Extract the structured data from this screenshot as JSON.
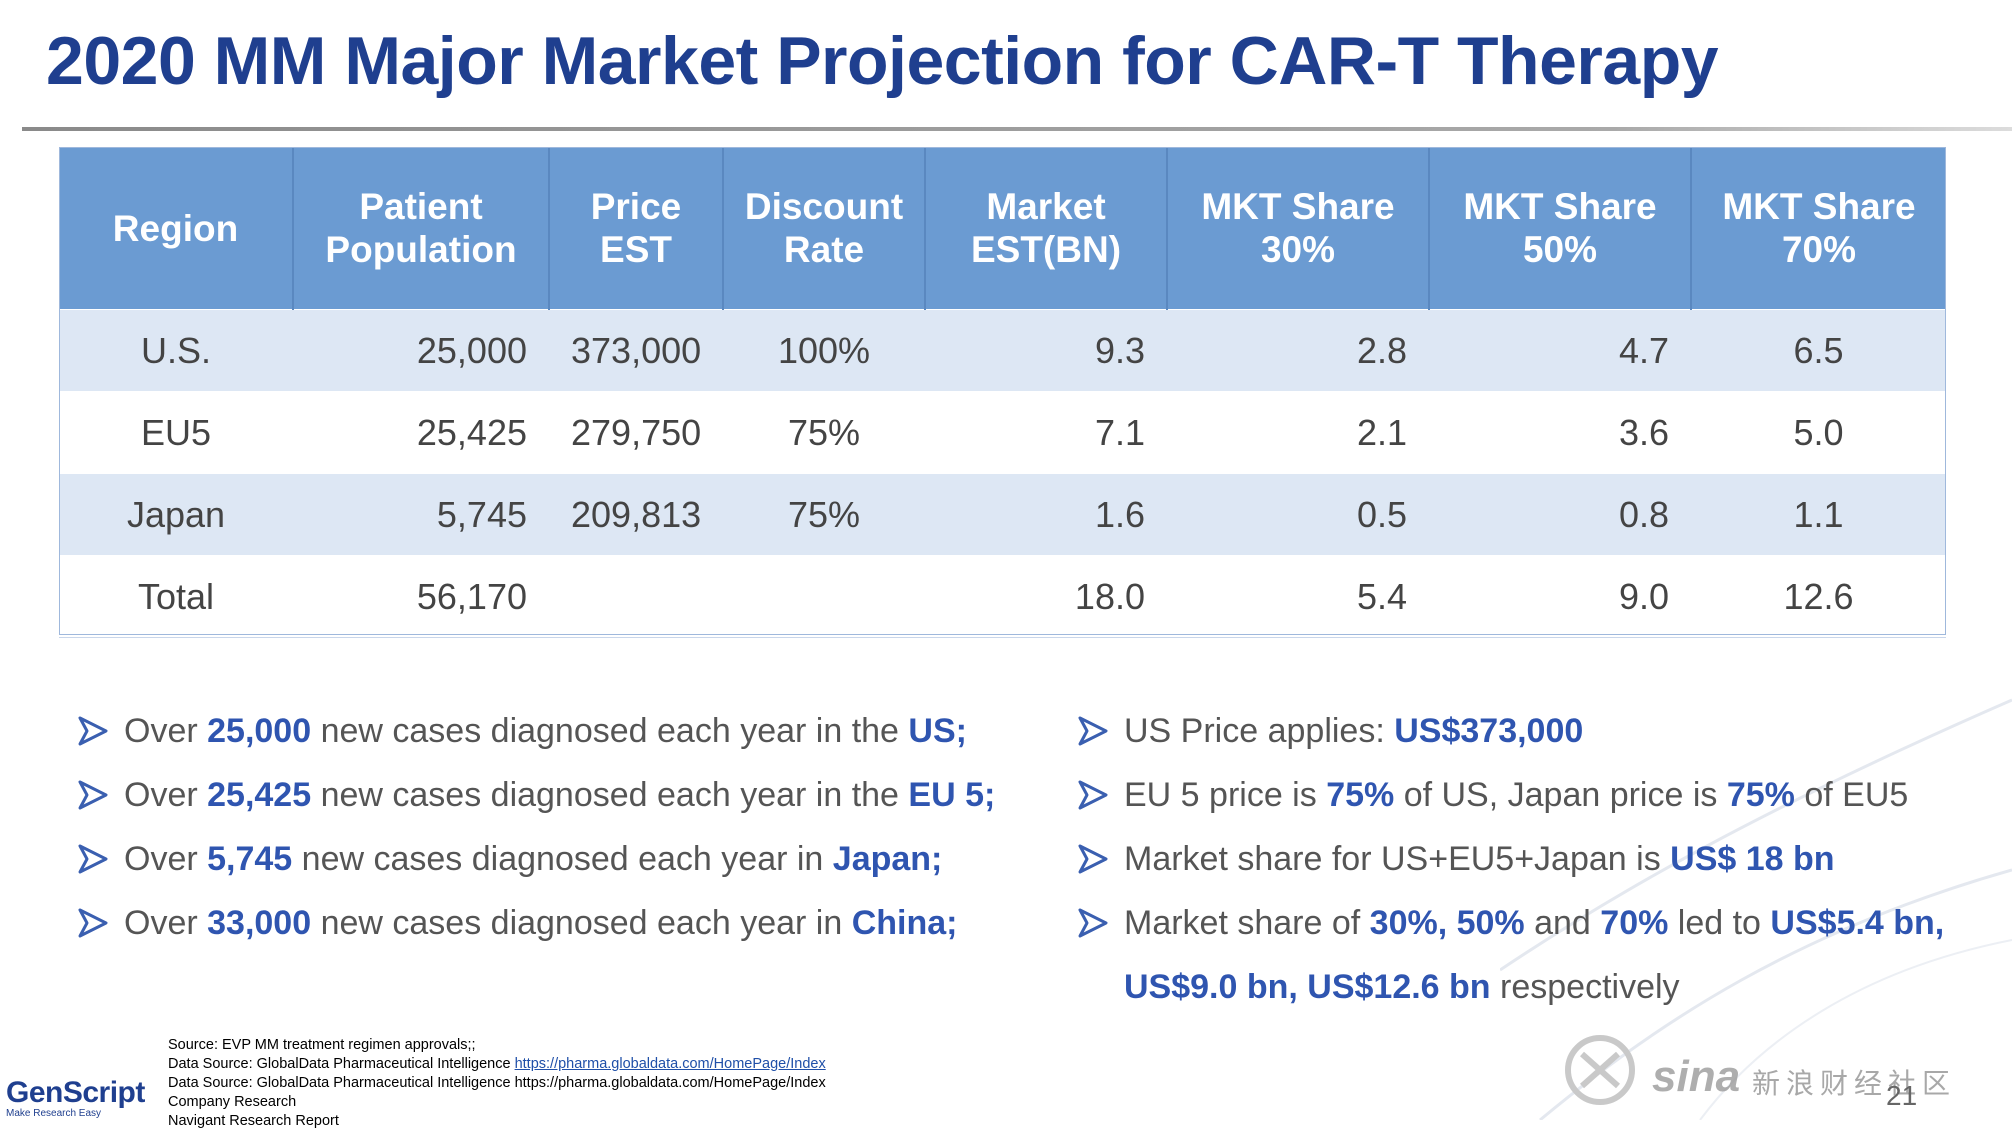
{
  "title": "2020 MM Major Market Projection for CAR-T Therapy",
  "table": {
    "headers": [
      [
        "Region",
        ""
      ],
      [
        "Patient",
        "Population"
      ],
      [
        "Price",
        "EST"
      ],
      [
        "Discount",
        "Rate"
      ],
      [
        "Market",
        "EST(BN)"
      ],
      [
        "MKT Share",
        "30%"
      ],
      [
        "MKT Share",
        "50%"
      ],
      [
        "MKT Share",
        "70%"
      ]
    ],
    "rows": [
      [
        "U.S.",
        "25,000",
        "373,000",
        "100%",
        "9.3",
        "2.8",
        "4.7",
        "6.5"
      ],
      [
        "EU5",
        "25,425",
        "279,750",
        "75%",
        "7.1",
        "2.1",
        "3.6",
        "5.0"
      ],
      [
        "Japan",
        "5,745",
        "209,813",
        "75%",
        "1.6",
        "0.5",
        "0.8",
        "1.1"
      ],
      [
        "Total",
        "56,170",
        "",
        "",
        "18.0",
        "5.4",
        "9.0",
        "12.6"
      ]
    ]
  },
  "left_bullets": [
    [
      {
        "t": "Over "
      },
      {
        "t": "25,000",
        "h": true
      },
      {
        "t": " new cases diagnosed each year in the "
      },
      {
        "t": "US;",
        "h": true
      }
    ],
    [
      {
        "t": "Over "
      },
      {
        "t": "25,425",
        "h": true
      },
      {
        "t": " new cases diagnosed each year in the "
      },
      {
        "t": "EU 5;",
        "h": true
      }
    ],
    [
      {
        "t": "Over "
      },
      {
        "t": "5,745",
        "h": true
      },
      {
        "t": " new cases diagnosed each year in "
      },
      {
        "t": "Japan;",
        "h": true
      }
    ],
    [
      {
        "t": "Over "
      },
      {
        "t": "33,000",
        "h": true
      },
      {
        "t": " new cases diagnosed each year in "
      },
      {
        "t": "China;",
        "h": true
      }
    ]
  ],
  "right_bullets": [
    [
      {
        "t": "US Price applies: "
      },
      {
        "t": "US$373,000",
        "h": true
      }
    ],
    [
      {
        "t": "EU 5 price is "
      },
      {
        "t": "75%",
        "h": true
      },
      {
        "t": " of US, Japan price is "
      },
      {
        "t": "75%",
        "h": true
      },
      {
        "t": " of EU5"
      }
    ],
    [
      {
        "t": "Market share for US+EU5+Japan is "
      },
      {
        "t": "US$ 18 bn",
        "h": true
      }
    ],
    [
      {
        "t": "Market share of "
      },
      {
        "t": "30%, 50%",
        "h": true
      },
      {
        "t": " and "
      },
      {
        "t": "70%",
        "h": true
      },
      {
        "t": " led to "
      },
      {
        "t": "US$5.4 bn,",
        "h": true
      }
    ],
    [
      {
        "t": "US$9.0 bn, US$12.6 bn",
        "h": true
      },
      {
        "t": " respectively"
      }
    ]
  ],
  "footer": {
    "source": "Source: EVP MM treatment regimen approvals;;",
    "data_source_1_prefix": "Data Source: GlobalData Pharmaceutical Intelligence ",
    "data_source_1_link": "https://pharma.globaldata.com/HomePage/Index",
    "data_source_2": "Data Source: GlobalData Pharmaceutical Intelligence https://pharma.globaldata.com/HomePage/Index",
    "company_research": "Company Research",
    "navigant": "Navigant Research Report"
  },
  "logo": {
    "name": "GenScript",
    "tagline": "Make Research Easy"
  },
  "page_number": "21",
  "watermark": {
    "sina": "sina",
    "text": "新浪财经社区"
  },
  "colors": {
    "title": "#1f3f8f",
    "header_bg": "#6b9bd2",
    "band": "#dde7f4",
    "highlight": "#2f55b0"
  }
}
